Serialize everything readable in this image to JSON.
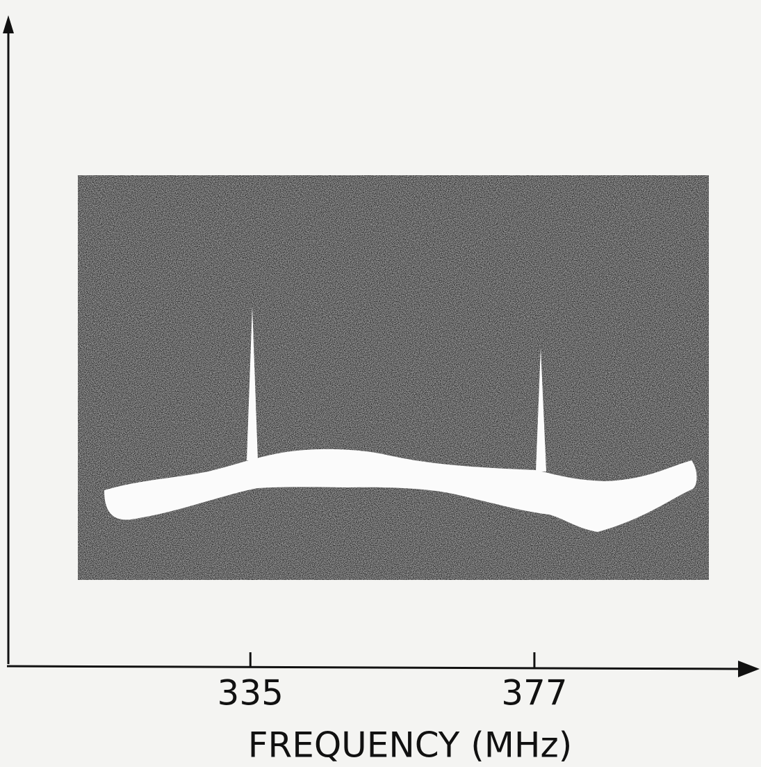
{
  "chart_data": {
    "type": "spectrum",
    "xlabel": "FREQUENCY (MHz)",
    "xlim": [
      299,
      410
    ],
    "xticks": [
      335,
      377
    ]
  }
}
